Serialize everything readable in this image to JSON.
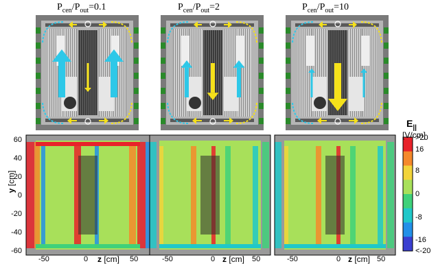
{
  "panels": [
    {
      "title_main": "P",
      "sub1": "cen",
      "sep": "/P",
      "sub2": "out",
      "eq": "=0.1",
      "center_arrow": "small",
      "side_arrow": "large"
    },
    {
      "title_main": "P",
      "sub1": "cen",
      "sep": "/P",
      "sub2": "out",
      "eq": "=2",
      "center_arrow": "medium",
      "side_arrow": "medium"
    },
    {
      "title_main": "P",
      "sub1": "cen",
      "sep": "/P",
      "sub2": "out",
      "eq": "=10",
      "center_arrow": "large",
      "side_arrow": "small"
    }
  ],
  "colorbar": {
    "title": "E",
    "title_sub": "||",
    "unit": "[V/cm]",
    "labels": [
      ">20",
      "16",
      "8",
      "0",
      "-8",
      "-16",
      "<-20"
    ],
    "colors": [
      "#e8232a",
      "#f5892b",
      "#f2d43a",
      "#a8e05a",
      "#3fd17a",
      "#20c8c9",
      "#2390e8",
      "#3a3fd0"
    ]
  },
  "yaxis": {
    "label": "y",
    "unit": "[cm]",
    "ticks": [
      "60",
      "40",
      "20",
      "0",
      "-20",
      "-40",
      "-60"
    ]
  },
  "xaxis": {
    "label": "z",
    "unit": "[cm]",
    "ticks": [
      "-50",
      "0",
      "50"
    ]
  },
  "arrow_colors": {
    "cyan": "#2ec8e8",
    "yellow": "#f5e11a",
    "green": "#2a8a2a"
  }
}
